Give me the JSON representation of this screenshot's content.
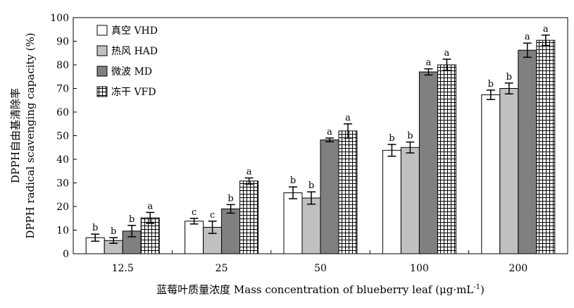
{
  "chart_data": {
    "type": "bar",
    "title": "",
    "ylabel_cn": "DPPH自由基清除率",
    "ylabel_en": "DPPH radical scavenging capacity (%)",
    "xlabel": "蓝莓叶质量浓度 Mass concentration of blueberry leaf (μg·mL",
    "xlabel_sup": "-1",
    "xlabel_close": ")",
    "categories": [
      "12.5",
      "25",
      "50",
      "100",
      "200"
    ],
    "ylim": [
      0,
      100
    ],
    "yticks": [
      "0",
      "10",
      "20",
      "30",
      "40",
      "50",
      "60",
      "70",
      "80",
      "90",
      "100"
    ],
    "legend_position": "top-left",
    "series": [
      {
        "name": "真空 VHD",
        "fill": "#ffffff",
        "pattern": "none",
        "values": [
          6.8,
          13.8,
          25.8,
          43.8,
          67.3
        ],
        "errors": [
          1.5,
          1.2,
          2.5,
          2.5,
          2.0
        ],
        "labels": [
          "b",
          "c",
          "b",
          "b",
          "b"
        ]
      },
      {
        "name": "热风 HAD",
        "fill": "#c0c0c0",
        "pattern": "none",
        "values": [
          5.6,
          11.2,
          23.6,
          45.0,
          70.0
        ],
        "errors": [
          1.2,
          2.6,
          2.6,
          2.3,
          2.3
        ],
        "labels": [
          "b",
          "c",
          "b",
          "b",
          "b"
        ]
      },
      {
        "name": "微波 MD",
        "fill": "#808080",
        "pattern": "none",
        "values": [
          9.6,
          19.0,
          48.2,
          77.0,
          86.2
        ],
        "errors": [
          2.4,
          1.8,
          0.8,
          1.3,
          3.0
        ],
        "labels": [
          "b",
          "b",
          "a",
          "a",
          "a"
        ]
      },
      {
        "name": "冻干 VFD",
        "fill": "#ffffff",
        "pattern": "grid",
        "values": [
          15.2,
          30.8,
          52.0,
          80.0,
          90.4
        ],
        "errors": [
          2.3,
          1.3,
          3.0,
          2.4,
          2.2
        ],
        "labels": [
          "a",
          "a",
          "a",
          "a",
          "a"
        ]
      }
    ]
  }
}
